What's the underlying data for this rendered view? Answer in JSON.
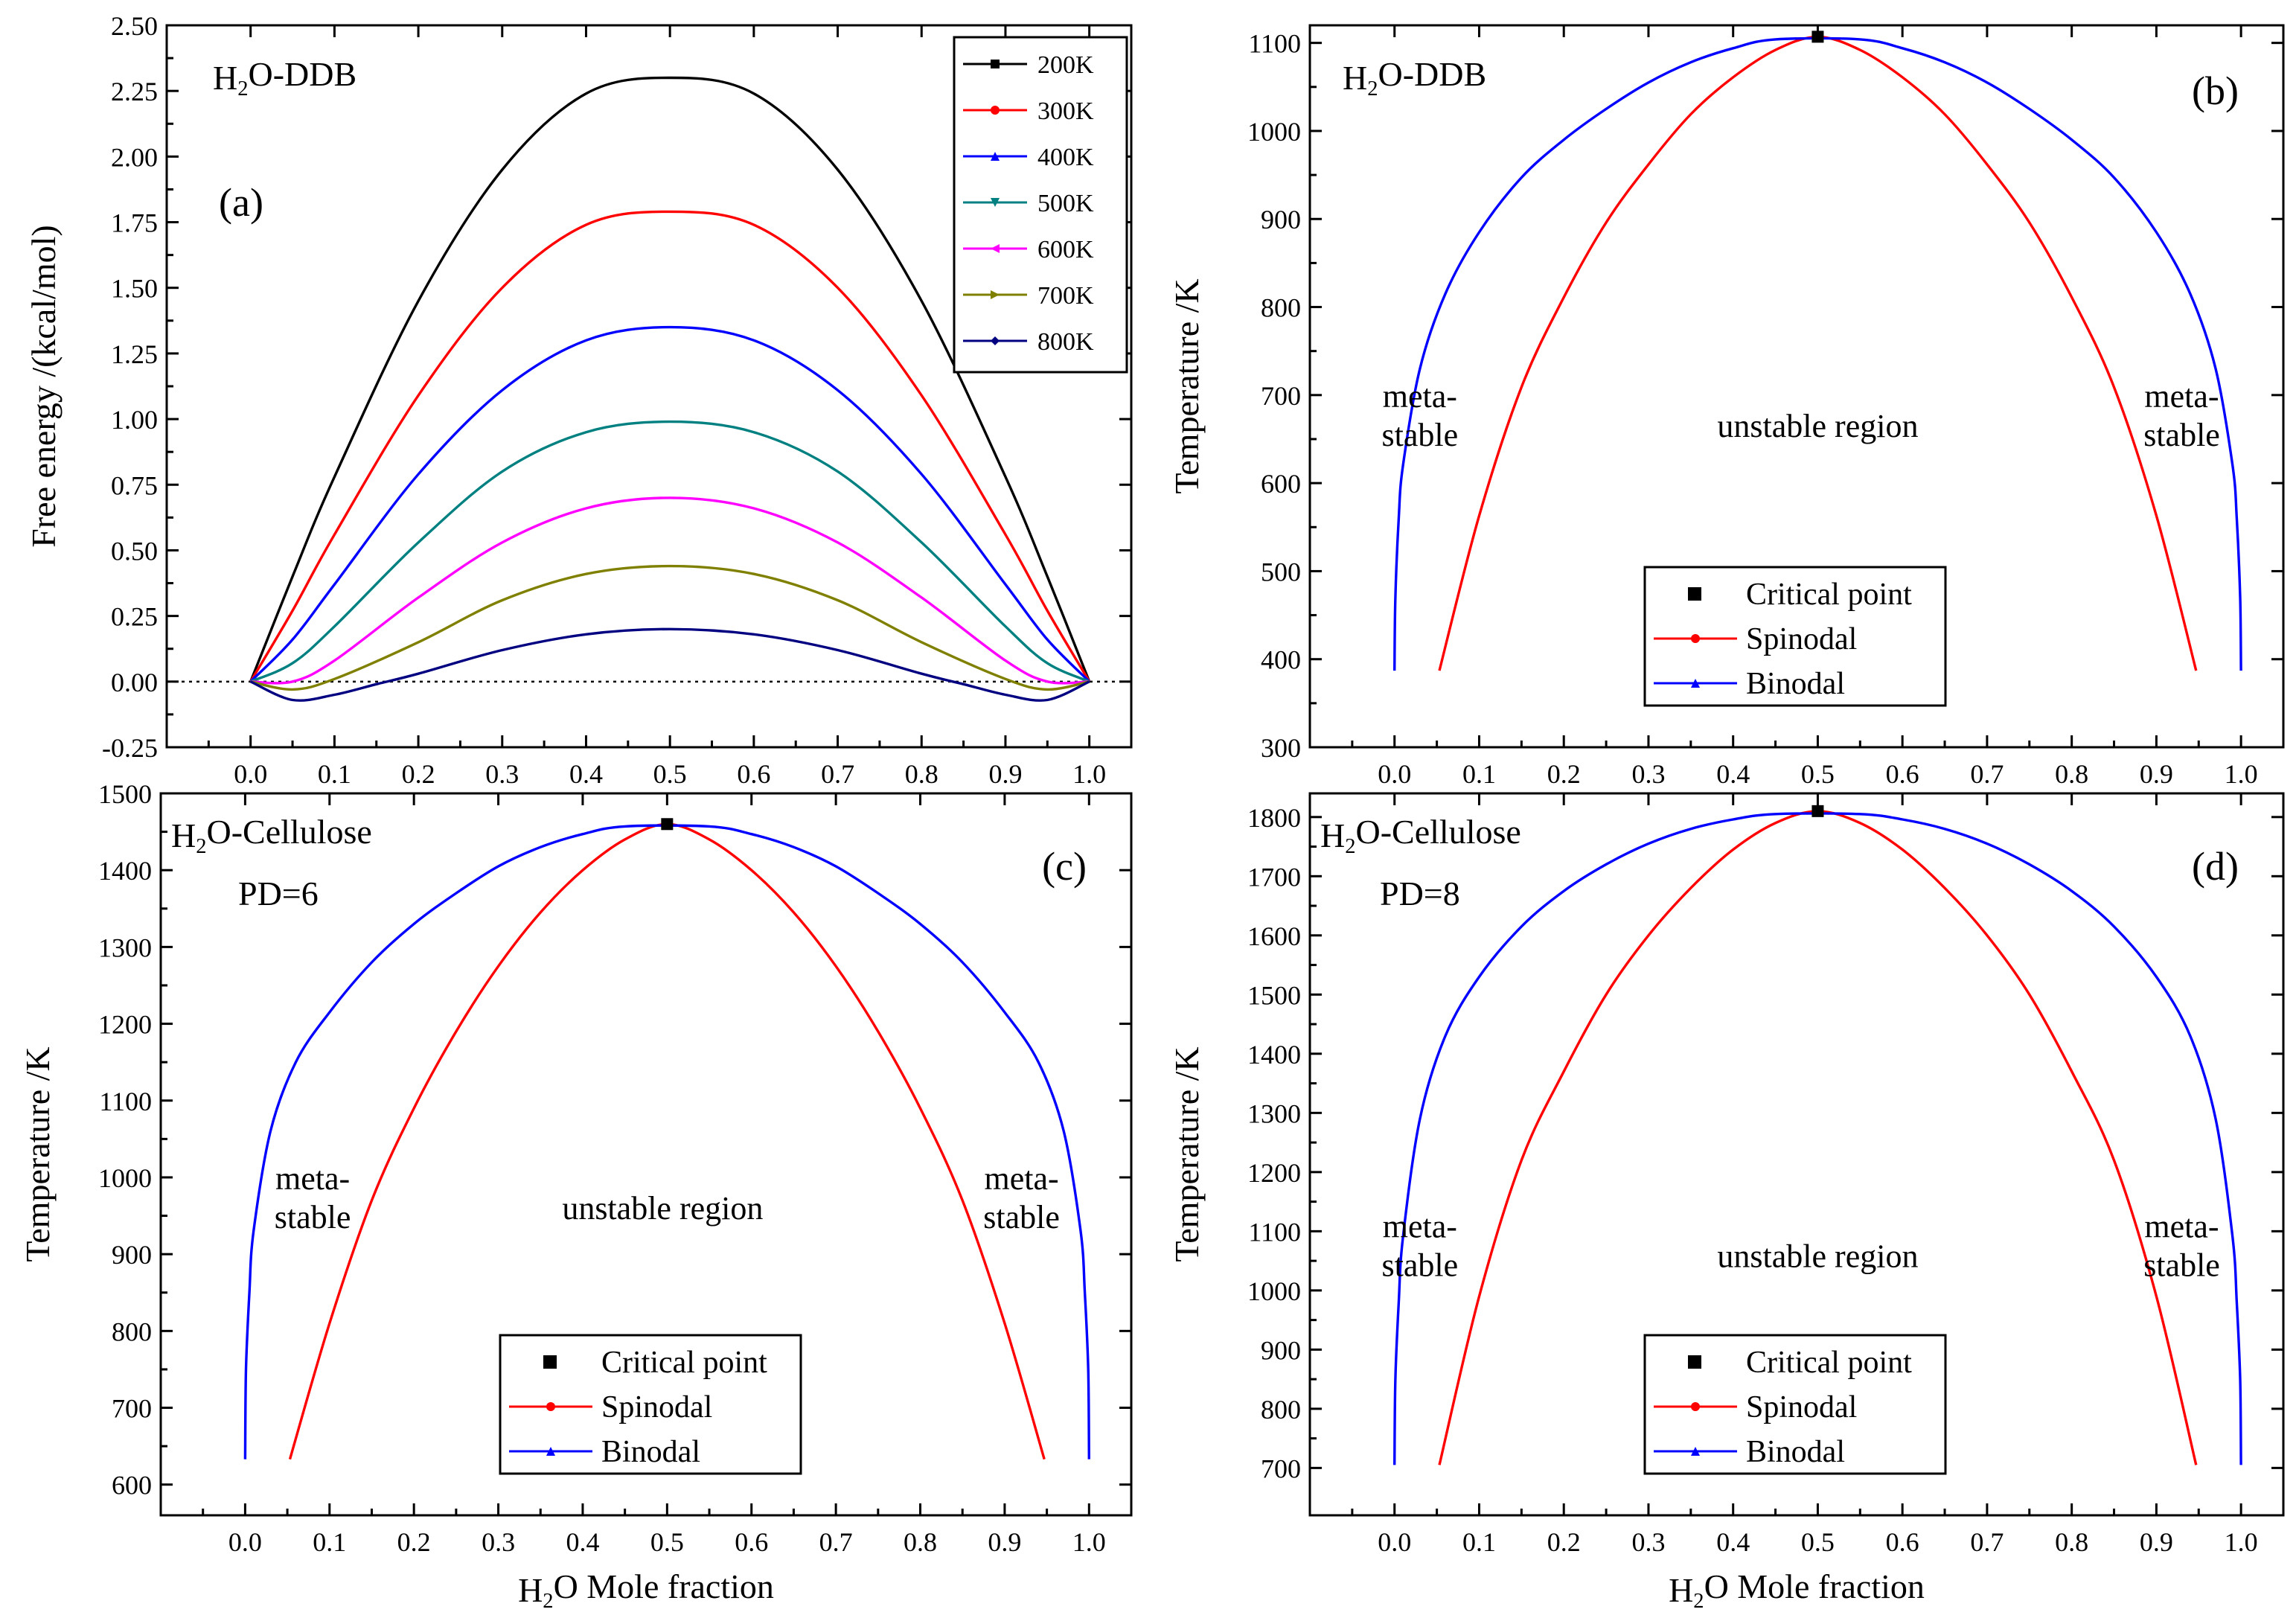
{
  "chart_data": [
    {
      "id": "a",
      "type": "line",
      "title": "H2O-DDB",
      "letter": "(a)",
      "xlabel": "",
      "ylabel": "Free energy /(kcal/mol)",
      "xlim": [
        -0.1,
        1.05
      ],
      "ylim": [
        -0.25,
        2.5
      ],
      "xticks": [
        "0.0",
        "0.1",
        "0.2",
        "0.3",
        "0.4",
        "0.5",
        "0.6",
        "0.7",
        "0.8",
        "0.9",
        "1.0"
      ],
      "yticks": [
        "-0.25",
        "0.00",
        "0.25",
        "0.50",
        "0.75",
        "1.00",
        "1.25",
        "1.50",
        "1.75",
        "2.00",
        "2.25",
        "2.50"
      ],
      "zero_line": true,
      "legend_position": "top-right",
      "series": [
        {
          "name": "200K",
          "color": "#000000",
          "marker": "square",
          "x": [
            0.0,
            0.05,
            0.1,
            0.2,
            0.3,
            0.4,
            0.5,
            0.6,
            0.7,
            0.8,
            0.9,
            0.95,
            1.0
          ],
          "y": [
            0.0,
            0.4,
            0.78,
            1.45,
            1.95,
            2.24,
            2.3,
            2.24,
            1.95,
            1.45,
            0.78,
            0.4,
            0.0
          ]
        },
        {
          "name": "300K",
          "color": "#ff0000",
          "marker": "circle",
          "x": [
            0.0,
            0.05,
            0.1,
            0.2,
            0.3,
            0.4,
            0.5,
            0.6,
            0.7,
            0.8,
            0.9,
            0.95,
            1.0
          ],
          "y": [
            0.0,
            0.27,
            0.56,
            1.09,
            1.5,
            1.74,
            1.79,
            1.74,
            1.5,
            1.09,
            0.56,
            0.27,
            0.0
          ]
        },
        {
          "name": "400K",
          "color": "#0000ff",
          "marker": "triangle-up",
          "x": [
            0.0,
            0.05,
            0.1,
            0.2,
            0.3,
            0.4,
            0.5,
            0.6,
            0.7,
            0.8,
            0.9,
            0.95,
            1.0
          ],
          "y": [
            0.0,
            0.16,
            0.37,
            0.79,
            1.11,
            1.3,
            1.35,
            1.3,
            1.11,
            0.79,
            0.37,
            0.16,
            0.0
          ]
        },
        {
          "name": "500K",
          "color": "#008080",
          "marker": "triangle-down",
          "x": [
            0.0,
            0.05,
            0.1,
            0.2,
            0.3,
            0.4,
            0.5,
            0.6,
            0.7,
            0.8,
            0.9,
            0.95,
            1.0
          ],
          "y": [
            0.0,
            0.07,
            0.21,
            0.53,
            0.8,
            0.95,
            0.99,
            0.95,
            0.8,
            0.53,
            0.21,
            0.07,
            0.0
          ]
        },
        {
          "name": "600K",
          "color": "#ff00ff",
          "marker": "triangle-left",
          "x": [
            0.0,
            0.05,
            0.1,
            0.2,
            0.3,
            0.4,
            0.5,
            0.6,
            0.7,
            0.8,
            0.9,
            0.95,
            1.0
          ],
          "y": [
            0.0,
            0.0,
            0.08,
            0.32,
            0.53,
            0.66,
            0.7,
            0.66,
            0.53,
            0.32,
            0.08,
            0.0,
            0.0
          ]
        },
        {
          "name": "700K",
          "color": "#808000",
          "marker": "triangle-right",
          "x": [
            0.0,
            0.05,
            0.1,
            0.2,
            0.3,
            0.4,
            0.5,
            0.6,
            0.7,
            0.8,
            0.9,
            0.95,
            1.0
          ],
          "y": [
            0.0,
            -0.03,
            0.01,
            0.15,
            0.31,
            0.41,
            0.44,
            0.41,
            0.31,
            0.15,
            0.01,
            -0.03,
            0.0
          ]
        },
        {
          "name": "800K",
          "color": "#000080",
          "marker": "diamond",
          "x": [
            0.0,
            0.05,
            0.1,
            0.15,
            0.2,
            0.3,
            0.4,
            0.5,
            0.6,
            0.7,
            0.8,
            0.85,
            0.9,
            0.95,
            1.0
          ],
          "y": [
            0.0,
            -0.07,
            -0.05,
            -0.01,
            0.03,
            0.12,
            0.18,
            0.2,
            0.18,
            0.12,
            0.03,
            -0.01,
            -0.05,
            -0.07,
            0.0
          ]
        }
      ]
    },
    {
      "id": "b",
      "type": "line",
      "title": "H2O-DDB",
      "letter": "(b)",
      "xlabel": "",
      "ylabel": "Temperature /K",
      "xlim": [
        -0.1,
        1.05
      ],
      "ylim": [
        300,
        1120
      ],
      "xticks": [
        "0.0",
        "0.1",
        "0.2",
        "0.3",
        "0.4",
        "0.5",
        "0.6",
        "0.7",
        "0.8",
        "0.9",
        "1.0"
      ],
      "yticks": [
        "300",
        "400",
        "500",
        "600",
        "700",
        "800",
        "900",
        "1000",
        "1100"
      ],
      "critical_point": {
        "x": 0.5,
        "y": 1107
      },
      "legend_position": "bottom-center",
      "legend": [
        "Critical point",
        "Spinodal",
        "Binodal"
      ],
      "region_labels": {
        "left_meta": [
          "meta-",
          "stable"
        ],
        "center": "unstable region",
        "right_meta": [
          "meta-",
          "stable"
        ]
      },
      "series": [
        {
          "name": "Spinodal",
          "color": "#ff0000",
          "x": [
            0.053,
            0.1,
            0.15,
            0.2,
            0.25,
            0.3,
            0.35,
            0.4,
            0.45,
            0.5,
            0.55,
            0.6,
            0.65,
            0.7,
            0.75,
            0.8,
            0.85,
            0.9,
            0.947
          ],
          "y": [
            387,
            563,
            709,
            811,
            896,
            962,
            1019,
            1061,
            1092,
            1107,
            1092,
            1061,
            1019,
            962,
            896,
            811,
            709,
            563,
            387
          ]
        },
        {
          "name": "Binodal",
          "color": "#0000ff",
          "x": [
            0.0,
            0.001,
            0.005,
            0.01,
            0.03,
            0.06,
            0.1,
            0.15,
            0.2,
            0.25,
            0.3,
            0.35,
            0.4,
            0.45,
            0.55,
            0.6,
            0.65,
            0.7,
            0.75,
            0.8,
            0.85,
            0.9,
            0.94,
            0.97,
            0.99,
            0.995,
            0.999,
            1.0
          ],
          "y": [
            387,
            470,
            560,
            620,
            730,
            815,
            885,
            947,
            990,
            1025,
            1055,
            1078,
            1094,
            1104,
            1104,
            1094,
            1078,
            1055,
            1025,
            990,
            947,
            885,
            815,
            730,
            620,
            560,
            470,
            387
          ]
        }
      ]
    },
    {
      "id": "c",
      "type": "line",
      "title": "H2O-Cellulose",
      "subtitle": "PD=6",
      "letter": "(c)",
      "xlabel": "H2O Mole fraction",
      "ylabel": "Temperature /K",
      "xlim": [
        -0.1,
        1.05
      ],
      "ylim": [
        560,
        1500
      ],
      "xticks": [
        "0.0",
        "0.1",
        "0.2",
        "0.3",
        "0.4",
        "0.5",
        "0.6",
        "0.7",
        "0.8",
        "0.9",
        "1.0"
      ],
      "yticks": [
        "600",
        "700",
        "800",
        "900",
        "1000",
        "1100",
        "1200",
        "1300",
        "1400",
        "1500"
      ],
      "critical_point": {
        "x": 0.5,
        "y": 1460
      },
      "legend_position": "bottom-center",
      "legend": [
        "Critical point",
        "Spinodal",
        "Binodal"
      ],
      "region_labels": {
        "left_meta": [
          "meta-",
          "stable"
        ],
        "center": "unstable region",
        "right_meta": [
          "meta-",
          "stable"
        ]
      },
      "series": [
        {
          "name": "Spinodal",
          "color": "#ff0000",
          "x": [
            0.053,
            0.1,
            0.15,
            0.2,
            0.25,
            0.3,
            0.35,
            0.4,
            0.45,
            0.5,
            0.55,
            0.6,
            0.65,
            0.7,
            0.75,
            0.8,
            0.85,
            0.9,
            0.947
          ],
          "y": [
            633,
            810,
            970,
            1090,
            1190,
            1275,
            1345,
            1400,
            1440,
            1460,
            1440,
            1400,
            1345,
            1275,
            1190,
            1090,
            970,
            810,
            633
          ]
        },
        {
          "name": "Binodal",
          "color": "#0000ff",
          "x": [
            0.0,
            0.001,
            0.005,
            0.01,
            0.03,
            0.06,
            0.1,
            0.15,
            0.2,
            0.25,
            0.3,
            0.35,
            0.4,
            0.45,
            0.55,
            0.6,
            0.65,
            0.7,
            0.75,
            0.8,
            0.85,
            0.9,
            0.94,
            0.97,
            0.99,
            0.995,
            0.999,
            1.0
          ],
          "y": [
            633,
            750,
            850,
            930,
            1060,
            1150,
            1215,
            1280,
            1330,
            1370,
            1405,
            1430,
            1447,
            1457,
            1457,
            1447,
            1430,
            1405,
            1370,
            1330,
            1280,
            1215,
            1150,
            1060,
            930,
            850,
            750,
            633
          ]
        }
      ]
    },
    {
      "id": "d",
      "type": "line",
      "title": "H2O-Cellulose",
      "subtitle": "PD=8",
      "letter": "(d)",
      "xlabel": "H2O Mole fraction",
      "ylabel": "Temperature /K",
      "xlim": [
        -0.1,
        1.05
      ],
      "ylim": [
        620,
        1840
      ],
      "xticks": [
        "0.0",
        "0.1",
        "0.2",
        "0.3",
        "0.4",
        "0.5",
        "0.6",
        "0.7",
        "0.8",
        "0.9",
        "1.0"
      ],
      "yticks": [
        "700",
        "800",
        "900",
        "1000",
        "1100",
        "1200",
        "1300",
        "1400",
        "1500",
        "1600",
        "1700",
        "1800"
      ],
      "critical_point": {
        "x": 0.5,
        "y": 1810
      },
      "legend_position": "bottom-center",
      "legend": [
        "Critical point",
        "Spinodal",
        "Binodal"
      ],
      "region_labels": {
        "left_meta": [
          "meta-",
          "stable"
        ],
        "center": "unstable region",
        "right_meta": [
          "meta-",
          "stable"
        ]
      },
      "series": [
        {
          "name": "Spinodal",
          "color": "#ff0000",
          "x": [
            0.053,
            0.1,
            0.15,
            0.2,
            0.25,
            0.3,
            0.35,
            0.4,
            0.45,
            0.5,
            0.55,
            0.6,
            0.65,
            0.7,
            0.75,
            0.8,
            0.85,
            0.9,
            0.947
          ],
          "y": [
            705,
            990,
            1220,
            1370,
            1500,
            1600,
            1680,
            1745,
            1790,
            1810,
            1790,
            1745,
            1680,
            1600,
            1500,
            1370,
            1220,
            990,
            705
          ]
        },
        {
          "name": "Binodal",
          "color": "#0000ff",
          "x": [
            0.0,
            0.001,
            0.005,
            0.01,
            0.03,
            0.06,
            0.1,
            0.15,
            0.2,
            0.25,
            0.3,
            0.35,
            0.4,
            0.45,
            0.55,
            0.6,
            0.65,
            0.7,
            0.75,
            0.8,
            0.85,
            0.9,
            0.94,
            0.97,
            0.99,
            0.995,
            0.999,
            1.0
          ],
          "y": [
            705,
            850,
            980,
            1090,
            1290,
            1430,
            1530,
            1615,
            1675,
            1720,
            1755,
            1780,
            1796,
            1805,
            1805,
            1796,
            1780,
            1755,
            1720,
            1675,
            1615,
            1530,
            1430,
            1290,
            1090,
            980,
            850,
            705
          ]
        }
      ]
    }
  ]
}
